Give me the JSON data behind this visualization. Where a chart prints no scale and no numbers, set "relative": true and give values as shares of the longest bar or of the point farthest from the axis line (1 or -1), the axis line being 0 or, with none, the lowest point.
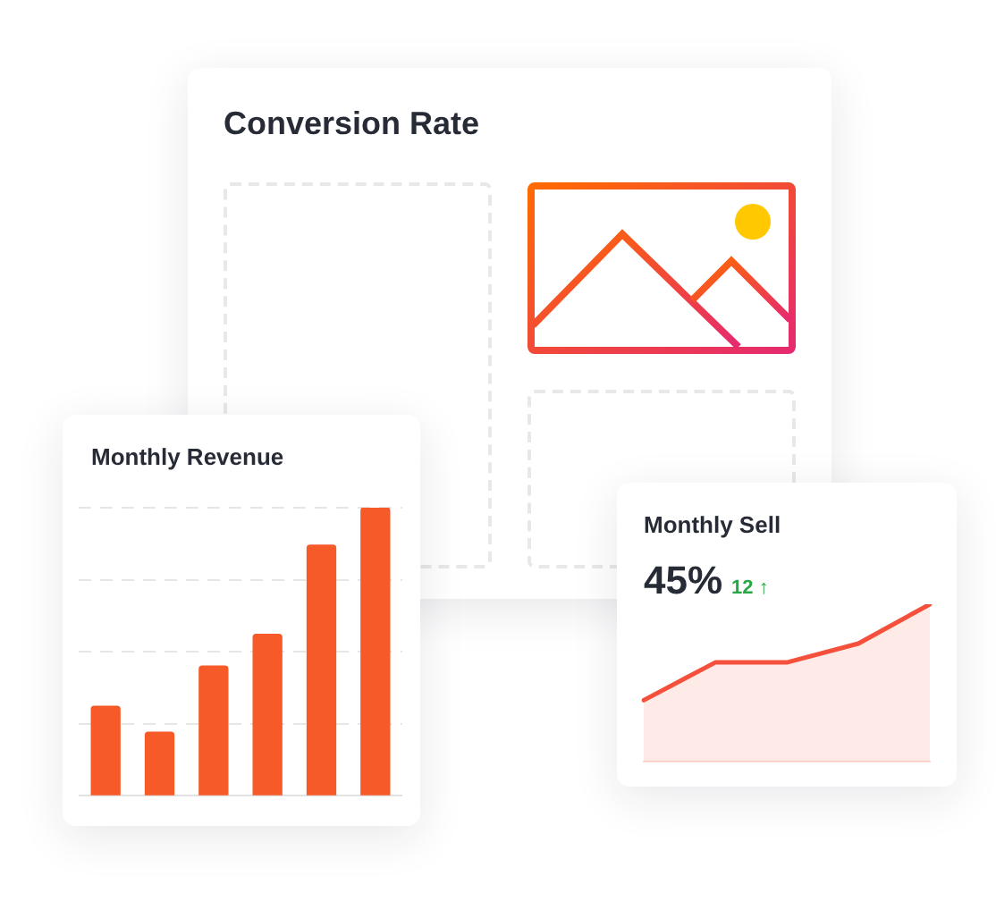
{
  "chart_data": [
    {
      "type": "other",
      "title": "Conversion Rate"
    },
    {
      "type": "bar",
      "title": "Monthly Revenue",
      "categories": [
        null,
        null,
        null,
        null,
        null,
        null
      ],
      "values": [
        0.31,
        0.22,
        0.45,
        0.56,
        0.87,
        1
      ],
      "color": "#f55a28",
      "relative": true,
      "grid": "y"
    },
    {
      "type": "area",
      "title": "Monthly Sell",
      "categories": [
        null,
        null,
        null,
        null,
        null
      ],
      "values": [
        0.39,
        0.63,
        0.63,
        0.75,
        1
      ],
      "color": "#f4503c",
      "relative": true,
      "annotations": [
        "45%",
        "12 ↑"
      ]
    }
  ]
}
